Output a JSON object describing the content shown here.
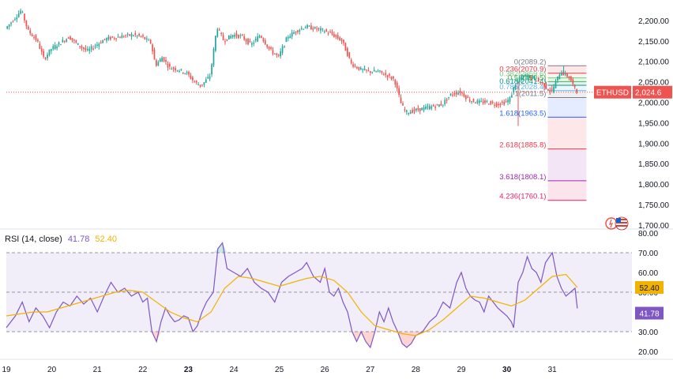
{
  "symbol": "ETHUSD",
  "colors": {
    "up": "#26a69a",
    "down": "#ef5350",
    "rsi": "#7e57c2",
    "rsi_ma": "#f2b200",
    "band_fill": "#ede7f6",
    "price_line": "#ef5350",
    "grid": "#e0e3eb"
  },
  "chart_data": [
    {
      "type": "candlestick",
      "title": "ETHUSD",
      "current_price": 2024.6,
      "current_price_label": "2,024.6",
      "ylim": [
        1690,
        2250
      ],
      "y_ticks": [
        1700,
        1750,
        1800,
        1850,
        1900,
        1950,
        2000,
        2050,
        2100,
        2150,
        2200
      ],
      "y_tick_labels": [
        "1,700.00",
        "1,750.00",
        "1,800.00",
        "1,850.00",
        "1,900.00",
        "1,950.00",
        "2,000.00",
        "2,050.00",
        "2,100.00",
        "2,150.00",
        "2,200.00"
      ],
      "x_ticks": [
        {
          "t": 0,
          "label": "19",
          "bold": false
        },
        {
          "t": 1,
          "label": "20",
          "bold": false
        },
        {
          "t": 2,
          "label": "21",
          "bold": false
        },
        {
          "t": 3,
          "label": "22",
          "bold": false
        },
        {
          "t": 4,
          "label": "23",
          "bold": true
        },
        {
          "t": 5,
          "label": "24",
          "bold": false
        },
        {
          "t": 6,
          "label": "25",
          "bold": false
        },
        {
          "t": 7,
          "label": "26",
          "bold": false
        },
        {
          "t": 8,
          "label": "27",
          "bold": false
        },
        {
          "t": 9,
          "label": "28",
          "bold": false
        },
        {
          "t": 10,
          "label": "29",
          "bold": false
        },
        {
          "t": 11,
          "label": "30",
          "bold": true
        },
        {
          "t": 12,
          "label": "31",
          "bold": false
        }
      ],
      "xlim": [
        0,
        13.75
      ],
      "price_path": [
        [
          0,
          2180
        ],
        [
          0.2,
          2205
        ],
        [
          0.35,
          2225
        ],
        [
          0.5,
          2175
        ],
        [
          0.7,
          2150
        ],
        [
          0.85,
          2105
        ],
        [
          1.0,
          2130
        ],
        [
          1.2,
          2145
        ],
        [
          1.4,
          2160
        ],
        [
          1.6,
          2140
        ],
        [
          1.8,
          2125
        ],
        [
          2.0,
          2140
        ],
        [
          2.2,
          2155
        ],
        [
          2.5,
          2160
        ],
        [
          2.8,
          2165
        ],
        [
          3.0,
          2160
        ],
        [
          3.2,
          2145
        ],
        [
          3.3,
          2090
        ],
        [
          3.45,
          2110
        ],
        [
          3.6,
          2085
        ],
        [
          3.8,
          2080
        ],
        [
          4.0,
          2070
        ],
        [
          4.15,
          2050
        ],
        [
          4.3,
          2040
        ],
        [
          4.5,
          2065
        ],
        [
          4.65,
          2185
        ],
        [
          4.8,
          2150
        ],
        [
          5.0,
          2165
        ],
        [
          5.2,
          2160
        ],
        [
          5.4,
          2140
        ],
        [
          5.6,
          2165
        ],
        [
          5.8,
          2130
        ],
        [
          6.0,
          2110
        ],
        [
          6.2,
          2160
        ],
        [
          6.4,
          2175
        ],
        [
          6.6,
          2185
        ],
        [
          6.8,
          2180
        ],
        [
          7.0,
          2175
        ],
        [
          7.2,
          2165
        ],
        [
          7.4,
          2150
        ],
        [
          7.6,
          2095
        ],
        [
          7.8,
          2080
        ],
        [
          8.0,
          2075
        ],
        [
          8.2,
          2075
        ],
        [
          8.4,
          2065
        ],
        [
          8.55,
          2055
        ],
        [
          8.7,
          1995
        ],
        [
          8.8,
          1975
        ],
        [
          9.0,
          1980
        ],
        [
          9.2,
          1985
        ],
        [
          9.4,
          1990
        ],
        [
          9.6,
          1995
        ],
        [
          9.8,
          2020
        ],
        [
          10.0,
          2025
        ],
        [
          10.2,
          2005
        ],
        [
          10.4,
          2000
        ],
        [
          10.6,
          2000
        ],
        [
          10.8,
          1995
        ],
        [
          11.0,
          2000
        ],
        [
          11.1,
          2010
        ],
        [
          11.2,
          2045
        ],
        [
          11.4,
          2065
        ],
        [
          11.6,
          2060
        ],
        [
          11.8,
          2045
        ],
        [
          12.0,
          2025
        ],
        [
          12.2,
          2075
        ],
        [
          12.4,
          2060
        ],
        [
          12.55,
          2025
        ]
      ],
      "annotations": [
        {
          "t": 11.25,
          "price": 1942,
          "type": "spike-low"
        },
        {
          "t": 12.25,
          "price": 2090,
          "type": "spike-high"
        }
      ],
      "fibonacci": {
        "t_start": 11.9,
        "t_end": 12.75,
        "levels": [
          {
            "ratio": "0",
            "price": 2089.2,
            "label": "0(2089.2)",
            "color": "#787b86"
          },
          {
            "ratio": "0.236",
            "price": 2070.9,
            "label": "0.236(2070.9)",
            "color": "#f23645"
          },
          {
            "ratio": "0.382",
            "price": 2059.6,
            "label": "0.382(2059.6)",
            "color": "#81c784"
          },
          {
            "ratio": "0.5",
            "price": 2050.5,
            "label": "0.5(2050.5)",
            "color": "#4caf50"
          },
          {
            "ratio": "0.618",
            "price": 2041.4,
            "label": "0.618(2041.4)",
            "color": "#089981"
          },
          {
            "ratio": "0.786",
            "price": 2028.4,
            "label": "0.786(2028.4)",
            "color": "#64b5f6"
          },
          {
            "ratio": "1",
            "price": 2011.5,
            "label": "1(2011.5)",
            "color": "#787b86"
          },
          {
            "ratio": "1.618",
            "price": 1963.5,
            "label": "1.618(1963.5)",
            "color": "#2962ff"
          },
          {
            "ratio": "2.618",
            "price": 1885.8,
            "label": "2.618(1885.8)",
            "color": "#f23645"
          },
          {
            "ratio": "3.618",
            "price": 1808.1,
            "label": "3.618(1808.1)",
            "color": "#9c27b0"
          },
          {
            "ratio": "4.236",
            "price": 1760.1,
            "label": "4.236(1760.1)",
            "color": "#e91e63"
          }
        ]
      }
    },
    {
      "type": "line",
      "title": "RSI (14, close)",
      "indicator_name": "RSI (14, close)",
      "rsi_value": 41.78,
      "rsi_ma_value": 52.4,
      "rsi_value_label": "41.78",
      "rsi_ma_value_label": "52.40",
      "ylim": [
        16,
        82
      ],
      "y_ticks": [
        20,
        30,
        40,
        50,
        60,
        70,
        80
      ],
      "y_tick_labels": [
        "20.00",
        "30.00",
        "40.00",
        "50.00",
        "60.00",
        "70.00",
        "80.00"
      ],
      "bands": {
        "upper": 70,
        "middle": 50,
        "lower": 30
      },
      "series": [
        {
          "name": "RSI",
          "points": [
            [
              0,
              32
            ],
            [
              0.2,
              38
            ],
            [
              0.35,
              45
            ],
            [
              0.5,
              35
            ],
            [
              0.65,
              42
            ],
            [
              0.8,
              38
            ],
            [
              0.95,
              32
            ],
            [
              1.1,
              40
            ],
            [
              1.25,
              45
            ],
            [
              1.4,
              43
            ],
            [
              1.55,
              48
            ],
            [
              1.7,
              44
            ],
            [
              1.85,
              47
            ],
            [
              2.0,
              40
            ],
            [
              2.15,
              48
            ],
            [
              2.3,
              55
            ],
            [
              2.45,
              50
            ],
            [
              2.6,
              52
            ],
            [
              2.75,
              48
            ],
            [
              2.9,
              50
            ],
            [
              3.0,
              45
            ],
            [
              3.1,
              47
            ],
            [
              3.2,
              30
            ],
            [
              3.3,
              25
            ],
            [
              3.4,
              35
            ],
            [
              3.5,
              42
            ],
            [
              3.6,
              38
            ],
            [
              3.7,
              35
            ],
            [
              3.8,
              36
            ],
            [
              3.9,
              38
            ],
            [
              4.0,
              37
            ],
            [
              4.1,
              30
            ],
            [
              4.2,
              33
            ],
            [
              4.3,
              40
            ],
            [
              4.4,
              45
            ],
            [
              4.55,
              50
            ],
            [
              4.65,
              72
            ],
            [
              4.75,
              75
            ],
            [
              4.85,
              62
            ],
            [
              5.0,
              60
            ],
            [
              5.15,
              58
            ],
            [
              5.3,
              62
            ],
            [
              5.45,
              55
            ],
            [
              5.6,
              52
            ],
            [
              5.75,
              50
            ],
            [
              5.9,
              45
            ],
            [
              6.05,
              55
            ],
            [
              6.2,
              58
            ],
            [
              6.35,
              60
            ],
            [
              6.5,
              62
            ],
            [
              6.6,
              65
            ],
            [
              6.75,
              58
            ],
            [
              6.9,
              55
            ],
            [
              7.0,
              62
            ],
            [
              7.1,
              50
            ],
            [
              7.2,
              48
            ],
            [
              7.3,
              52
            ],
            [
              7.4,
              45
            ],
            [
              7.5,
              40
            ],
            [
              7.6,
              30
            ],
            [
              7.7,
              25
            ],
            [
              7.8,
              30
            ],
            [
              7.9,
              25
            ],
            [
              8.0,
              22
            ],
            [
              8.1,
              30
            ],
            [
              8.2,
              40
            ],
            [
              8.3,
              35
            ],
            [
              8.4,
              42
            ],
            [
              8.5,
              35
            ],
            [
              8.6,
              30
            ],
            [
              8.7,
              24
            ],
            [
              8.8,
              22
            ],
            [
              8.9,
              24
            ],
            [
              9.0,
              28
            ],
            [
              9.15,
              30
            ],
            [
              9.3,
              35
            ],
            [
              9.45,
              38
            ],
            [
              9.6,
              45
            ],
            [
              9.75,
              42
            ],
            [
              9.9,
              55
            ],
            [
              10.0,
              60
            ],
            [
              10.1,
              52
            ],
            [
              10.2,
              48
            ],
            [
              10.3,
              46
            ],
            [
              10.4,
              45
            ],
            [
              10.5,
              40
            ],
            [
              10.6,
              48
            ],
            [
              10.7,
              45
            ],
            [
              10.8,
              42
            ],
            [
              10.9,
              40
            ],
            [
              11.0,
              38
            ],
            [
              11.1,
              35
            ],
            [
              11.15,
              32
            ],
            [
              11.25,
              55
            ],
            [
              11.35,
              60
            ],
            [
              11.45,
              68
            ],
            [
              11.55,
              62
            ],
            [
              11.65,
              60
            ],
            [
              11.75,
              55
            ],
            [
              11.85,
              65
            ],
            [
              12.0,
              70
            ],
            [
              12.1,
              58
            ],
            [
              12.2,
              52
            ],
            [
              12.3,
              48
            ],
            [
              12.4,
              50
            ],
            [
              12.5,
              52
            ],
            [
              12.55,
              41.78
            ]
          ]
        },
        {
          "name": "RSI-based MA",
          "points": [
            [
              0,
              38
            ],
            [
              0.3,
              39
            ],
            [
              0.6,
              40
            ],
            [
              0.9,
              40
            ],
            [
              1.2,
              42
            ],
            [
              1.5,
              44
            ],
            [
              1.8,
              46
            ],
            [
              2.1,
              48
            ],
            [
              2.4,
              50
            ],
            [
              2.7,
              51
            ],
            [
              3.0,
              50
            ],
            [
              3.3,
              45
            ],
            [
              3.6,
              40
            ],
            [
              3.9,
              37
            ],
            [
              4.2,
              35
            ],
            [
              4.5,
              40
            ],
            [
              4.8,
              52
            ],
            [
              5.1,
              58
            ],
            [
              5.4,
              57
            ],
            [
              5.7,
              55
            ],
            [
              6.0,
              53
            ],
            [
              6.3,
              55
            ],
            [
              6.6,
              57
            ],
            [
              6.9,
              58
            ],
            [
              7.2,
              56
            ],
            [
              7.5,
              50
            ],
            [
              7.8,
              40
            ],
            [
              8.1,
              33
            ],
            [
              8.4,
              31
            ],
            [
              8.7,
              29
            ],
            [
              9.0,
              28
            ],
            [
              9.3,
              31
            ],
            [
              9.6,
              36
            ],
            [
              9.9,
              42
            ],
            [
              10.2,
              48
            ],
            [
              10.5,
              47
            ],
            [
              10.8,
              45
            ],
            [
              11.1,
              43
            ],
            [
              11.4,
              46
            ],
            [
              11.7,
              52
            ],
            [
              12.0,
              58
            ],
            [
              12.3,
              59
            ],
            [
              12.55,
              52.4
            ]
          ]
        }
      ]
    }
  ]
}
